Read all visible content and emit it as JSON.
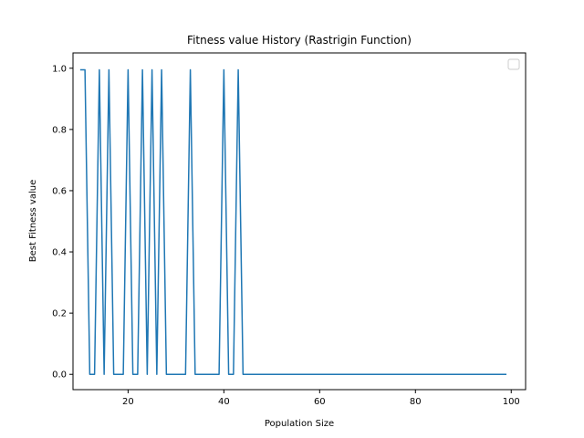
{
  "chart_data": {
    "type": "line",
    "title": "Fitness value History (Rastrigin Function)",
    "xlabel": "Population Size",
    "ylabel": "Best Fitness value",
    "xlim": [
      8.5,
      103
    ],
    "ylim": [
      -0.05,
      1.05
    ],
    "xticks": [
      20,
      40,
      60,
      80,
      100
    ],
    "yticks": [
      0.0,
      0.2,
      0.4,
      0.6,
      0.8,
      1.0
    ],
    "xtick_labels": [
      "20",
      "40",
      "60",
      "80",
      "100"
    ],
    "ytick_labels": [
      "0.0",
      "0.2",
      "0.4",
      "0.6",
      "0.8",
      "1.0"
    ],
    "grid": false,
    "legend": "top-right",
    "series": [
      {
        "color": "#1f77b4",
        "x": [
          10,
          11,
          12,
          13,
          14,
          15,
          16,
          17,
          18,
          19,
          20,
          21,
          22,
          23,
          24,
          25,
          26,
          27,
          28,
          29,
          30,
          31,
          32,
          33,
          34,
          35,
          36,
          37,
          38,
          39,
          40,
          41,
          42,
          43,
          44,
          45,
          46,
          47,
          48,
          49,
          50,
          51,
          52,
          53,
          54,
          55,
          56,
          57,
          58,
          59,
          60,
          61,
          62,
          63,
          64,
          65,
          66,
          67,
          68,
          69,
          70,
          71,
          72,
          73,
          74,
          75,
          76,
          77,
          78,
          79,
          80,
          81,
          82,
          83,
          84,
          85,
          86,
          87,
          88,
          89,
          90,
          91,
          92,
          93,
          94,
          95,
          96,
          97,
          98,
          99
        ],
        "values": [
          0.995,
          0.995,
          0,
          0,
          0.995,
          0,
          0.995,
          0,
          0,
          0,
          0.995,
          0,
          0,
          0.995,
          0,
          0.995,
          0,
          0.995,
          0,
          0,
          0,
          0,
          0,
          0.995,
          0,
          0,
          0,
          0,
          0,
          0,
          0.995,
          0,
          0,
          0.995,
          0,
          0,
          0,
          0,
          0,
          0,
          0,
          0,
          0,
          0,
          0,
          0,
          0,
          0,
          0,
          0,
          0,
          0,
          0,
          0,
          0,
          0,
          0,
          0,
          0,
          0,
          0,
          0,
          0,
          0,
          0,
          0,
          0,
          0,
          0,
          0,
          0,
          0,
          0,
          0,
          0,
          0,
          0,
          0,
          0,
          0,
          0,
          0,
          0,
          0,
          0,
          0,
          0,
          0,
          0,
          0
        ]
      }
    ]
  }
}
